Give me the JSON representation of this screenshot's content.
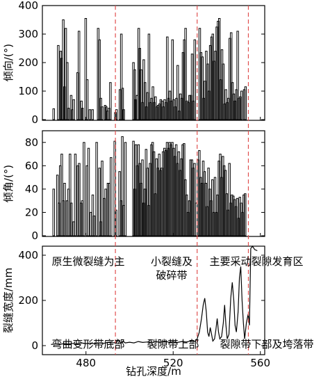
{
  "chart_data": [
    {
      "type": "bar",
      "ylabel": "倾向/(°)",
      "xlim": [
        460,
        562
      ],
      "ylim": [
        0,
        400
      ],
      "yticks": [
        0,
        100,
        200,
        300,
        400
      ],
      "bars": [
        [
          465.2,
          38
        ],
        [
          467.3,
          260
        ],
        [
          468.4,
          240
        ],
        [
          468.8,
          215
        ],
        [
          469.6,
          350
        ],
        [
          470.1,
          115
        ],
        [
          470.7,
          320
        ],
        [
          471.4,
          200
        ],
        [
          472.0,
          40
        ],
        [
          473.2,
          85
        ],
        [
          473.7,
          35
        ],
        [
          474.4,
          70
        ],
        [
          476.2,
          165
        ],
        [
          476.8,
          310
        ],
        [
          477.9,
          65
        ],
        [
          478.4,
          40
        ],
        [
          479.9,
          355
        ],
        [
          480.6,
          140
        ],
        [
          481.8,
          35
        ],
        [
          483.0,
          35
        ],
        [
          485.6,
          320
        ],
        [
          486.2,
          280
        ],
        [
          486.8,
          75
        ],
        [
          487.4,
          45
        ],
        [
          488.8,
          50
        ],
        [
          489.3,
          45
        ],
        [
          489.9,
          30
        ],
        [
          490.6,
          40
        ],
        [
          491.2,
          130
        ],
        [
          493.5,
          25
        ],
        [
          494.0,
          35
        ],
        [
          495.6,
          105
        ],
        [
          496.2,
          300
        ],
        [
          496.8,
          110
        ],
        [
          497.3,
          35
        ],
        [
          501.8,
          200
        ],
        [
          502.4,
          175
        ],
        [
          502.8,
          70
        ],
        [
          503.4,
          85
        ],
        [
          504.2,
          320
        ],
        [
          504.7,
          250
        ],
        [
          505.3,
          175
        ],
        [
          505.9,
          60
        ],
        [
          506.5,
          210
        ],
        [
          507.1,
          130
        ],
        [
          507.7,
          45
        ],
        [
          508.3,
          95
        ],
        [
          508.9,
          300
        ],
        [
          509.5,
          60
        ],
        [
          510.1,
          75
        ],
        [
          510.7,
          115
        ],
        [
          511.3,
          60
        ],
        [
          511.9,
          80
        ],
        [
          512.5,
          45
        ],
        [
          513.1,
          50
        ],
        [
          513.7,
          55
        ],
        [
          514.3,
          70
        ],
        [
          514.9,
          65
        ],
        [
          515.5,
          45
        ],
        [
          516.1,
          70
        ],
        [
          516.7,
          60
        ],
        [
          517.3,
          290
        ],
        [
          517.9,
          75
        ],
        [
          518.5,
          100
        ],
        [
          519.1,
          65
        ],
        [
          519.7,
          280
        ],
        [
          520.3,
          70
        ],
        [
          520.9,
          45
        ],
        [
          521.5,
          75
        ],
        [
          522.1,
          190
        ],
        [
          522.7,
          30
        ],
        [
          523.3,
          90
        ],
        [
          523.9,
          75
        ],
        [
          524.5,
          235
        ],
        [
          525.1,
          280
        ],
        [
          525.7,
          320
        ],
        [
          526.3,
          65
        ],
        [
          526.9,
          60
        ],
        [
          527.5,
          85
        ],
        [
          528.1,
          85
        ],
        [
          528.7,
          230
        ],
        [
          529.3,
          65
        ],
        [
          529.9,
          280
        ],
        [
          532.2,
          320
        ],
        [
          532.8,
          235
        ],
        [
          533.4,
          220
        ],
        [
          534.0,
          75
        ],
        [
          534.6,
          135
        ],
        [
          535.2,
          240
        ],
        [
          535.8,
          195
        ],
        [
          536.4,
          100
        ],
        [
          537.0,
          260
        ],
        [
          537.6,
          290
        ],
        [
          538.2,
          300
        ],
        [
          538.8,
          205
        ],
        [
          539.4,
          240
        ],
        [
          540.0,
          325
        ],
        [
          540.6,
          345
        ],
        [
          541.2,
          355
        ],
        [
          541.8,
          140
        ],
        [
          542.4,
          245
        ],
        [
          543.0,
          195
        ],
        [
          543.6,
          55
        ],
        [
          544.2,
          105
        ],
        [
          544.8,
          60
        ],
        [
          545.4,
          75
        ],
        [
          546.0,
          285
        ],
        [
          546.6,
          305
        ],
        [
          547.2,
          130
        ],
        [
          547.8,
          90
        ],
        [
          548.4,
          65
        ],
        [
          549.0,
          105
        ],
        [
          549.6,
          310
        ],
        [
          550.2,
          75
        ],
        [
          550.8,
          80
        ],
        [
          551.4,
          100
        ],
        [
          552.6,
          105
        ],
        [
          553.2,
          115
        ]
      ]
    },
    {
      "type": "bar",
      "ylabel": "倾角/(°)",
      "xlim": [
        460,
        562
      ],
      "ylim": [
        0,
        90
      ],
      "yticks": [
        0,
        20,
        40,
        60,
        80
      ],
      "bars": [
        [
          465.2,
          40
        ],
        [
          466.9,
          52
        ],
        [
          467.6,
          28
        ],
        [
          468.2,
          60
        ],
        [
          468.9,
          70
        ],
        [
          469.6,
          30
        ],
        [
          470.2,
          45
        ],
        [
          471.3,
          30
        ],
        [
          472.0,
          40
        ],
        [
          472.7,
          70
        ],
        [
          473.3,
          28
        ],
        [
          474.4,
          12
        ],
        [
          475.1,
          70
        ],
        [
          476.3,
          60
        ],
        [
          476.9,
          62
        ],
        [
          477.8,
          28
        ],
        [
          478.3,
          30
        ],
        [
          479.1,
          80
        ],
        [
          480.5,
          60
        ],
        [
          481.2,
          75
        ],
        [
          482.2,
          20
        ],
        [
          483.1,
          35
        ],
        [
          483.7,
          17
        ],
        [
          484.9,
          80
        ],
        [
          486.2,
          58
        ],
        [
          486.8,
          12
        ],
        [
          487.4,
          64
        ],
        [
          488.4,
          32
        ],
        [
          489.0,
          40
        ],
        [
          490.1,
          45
        ],
        [
          490.7,
          45
        ],
        [
          491.5,
          67
        ],
        [
          493.2,
          81
        ],
        [
          493.8,
          22
        ],
        [
          495.4,
          55
        ],
        [
          496.1,
          30
        ],
        [
          496.7,
          85
        ],
        [
          497.3,
          26
        ],
        [
          498.1,
          80
        ],
        [
          501.8,
          81
        ],
        [
          502.3,
          40
        ],
        [
          502.9,
          78
        ],
        [
          503.5,
          60
        ],
        [
          504.1,
          78
        ],
        [
          504.7,
          62
        ],
        [
          505.3,
          45
        ],
        [
          505.9,
          65
        ],
        [
          506.4,
          28
        ],
        [
          507.0,
          40
        ],
        [
          507.6,
          74
        ],
        [
          508.2,
          58
        ],
        [
          508.8,
          26
        ],
        [
          509.4,
          62
        ],
        [
          510.0,
          78
        ],
        [
          510.6,
          80
        ],
        [
          511.2,
          72
        ],
        [
          511.8,
          36
        ],
        [
          512.4,
          66
        ],
        [
          513.0,
          58
        ],
        [
          513.6,
          70
        ],
        [
          514.2,
          56
        ],
        [
          514.8,
          58
        ],
        [
          515.4,
          72
        ],
        [
          516.0,
          75
        ],
        [
          516.6,
          73
        ],
        [
          517.2,
          80
        ],
        [
          517.8,
          75
        ],
        [
          518.4,
          80
        ],
        [
          519.0,
          78
        ],
        [
          519.6,
          80
        ],
        [
          520.2,
          75
        ],
        [
          520.8,
          68
        ],
        [
          521.4,
          78
        ],
        [
          522.0,
          62
        ],
        [
          522.6,
          72
        ],
        [
          523.2,
          56
        ],
        [
          523.8,
          66
        ],
        [
          524.4,
          78
        ],
        [
          525.0,
          79
        ],
        [
          525.6,
          48
        ],
        [
          526.2,
          35
        ],
        [
          526.8,
          20
        ],
        [
          527.4,
          30
        ],
        [
          528.0,
          65
        ],
        [
          528.6,
          65
        ],
        [
          529.2,
          58
        ],
        [
          529.8,
          62
        ],
        [
          530.6,
          28
        ],
        [
          531.4,
          65
        ],
        [
          532.0,
          73
        ],
        [
          532.6,
          50
        ],
        [
          533.2,
          45
        ],
        [
          533.8,
          64
        ],
        [
          534.4,
          55
        ],
        [
          535.0,
          45
        ],
        [
          535.6,
          25
        ],
        [
          536.2,
          58
        ],
        [
          536.8,
          40
        ],
        [
          537.4,
          30
        ],
        [
          538.0,
          48
        ],
        [
          538.6,
          20
        ],
        [
          539.2,
          50
        ],
        [
          539.8,
          20
        ],
        [
          540.4,
          35
        ],
        [
          541.0,
          64
        ],
        [
          541.6,
          70
        ],
        [
          542.2,
          50
        ],
        [
          542.8,
          68
        ],
        [
          543.4,
          60
        ],
        [
          544.0,
          56
        ],
        [
          544.6,
          36
        ],
        [
          545.2,
          22
        ],
        [
          545.8,
          62
        ],
        [
          546.4,
          28
        ],
        [
          547.0,
          35
        ],
        [
          547.6,
          34
        ],
        [
          548.2,
          31
        ],
        [
          548.8,
          25
        ],
        [
          549.4,
          32
        ],
        [
          550.0,
          15
        ],
        [
          550.6,
          33
        ],
        [
          551.2,
          28
        ],
        [
          551.8,
          20
        ],
        [
          552.4,
          35
        ],
        [
          553.0,
          36
        ]
      ]
    },
    {
      "type": "line",
      "ylabel": "裂缝宽度/mm",
      "xlabel": "钻孔深度/m",
      "xlim": [
        460,
        562
      ],
      "ylim": [
        -40,
        440
      ],
      "yticks": [
        0,
        200,
        400
      ],
      "xticks": [
        480,
        520,
        560
      ],
      "points": [
        [
          464,
          5
        ],
        [
          466,
          8
        ],
        [
          468,
          6
        ],
        [
          470,
          9
        ],
        [
          472,
          7
        ],
        [
          474,
          10
        ],
        [
          476,
          8
        ],
        [
          478,
          12
        ],
        [
          480,
          9
        ],
        [
          482,
          11
        ],
        [
          484,
          8
        ],
        [
          486,
          12
        ],
        [
          488,
          10
        ],
        [
          490,
          14
        ],
        [
          492,
          11
        ],
        [
          494,
          15
        ],
        [
          495,
          25
        ],
        [
          496,
          10
        ],
        [
          497,
          20
        ],
        [
          498,
          12
        ],
        [
          500,
          15
        ],
        [
          502,
          12
        ],
        [
          504,
          18
        ],
        [
          506,
          14
        ],
        [
          508,
          16
        ],
        [
          510,
          12
        ],
        [
          512,
          18
        ],
        [
          514,
          14
        ],
        [
          516,
          20
        ],
        [
          518,
          15
        ],
        [
          520,
          17
        ],
        [
          522,
          14
        ],
        [
          524,
          18
        ],
        [
          526,
          16
        ],
        [
          528,
          20
        ],
        [
          530,
          17
        ],
        [
          531,
          30
        ],
        [
          532,
          60
        ],
        [
          533,
          120
        ],
        [
          533.8,
          180
        ],
        [
          534.5,
          210
        ],
        [
          535.2,
          150
        ],
        [
          535.8,
          60
        ],
        [
          536.4,
          40
        ],
        [
          537,
          80
        ],
        [
          537.6,
          50
        ],
        [
          538.2,
          20
        ],
        [
          539,
          30
        ],
        [
          539.6,
          70
        ],
        [
          540.2,
          120
        ],
        [
          540.8,
          60
        ],
        [
          541.4,
          30
        ],
        [
          542.2,
          40
        ],
        [
          543,
          100
        ],
        [
          543.6,
          180
        ],
        [
          544.2,
          90
        ],
        [
          544.8,
          30
        ],
        [
          545.6,
          50
        ],
        [
          546.4,
          210
        ],
        [
          547.1,
          280
        ],
        [
          547.8,
          200
        ],
        [
          548.4,
          90
        ],
        [
          549,
          60
        ],
        [
          549.8,
          150
        ],
        [
          550.4,
          300
        ],
        [
          551,
          350
        ],
        [
          551.6,
          200
        ],
        [
          552.2,
          100
        ],
        [
          552.8,
          30
        ],
        [
          553.6,
          100
        ],
        [
          554.4,
          140
        ],
        [
          555,
          90
        ],
        [
          555.6,
          430
        ],
        [
          556.4,
          440
        ],
        [
          557.4,
          425
        ],
        [
          558.6,
          420
        ]
      ]
    }
  ],
  "dividers": [
    493.5,
    531.0,
    554.5
  ],
  "zone_labels_top": [
    "原生微裂缝为主",
    "小裂缝及",
    "破碎带",
    "主要采动裂隙发育区"
  ],
  "zone_labels_bottom": [
    "弯曲变形带底部",
    "裂隙带上部",
    "裂隙带下部及垮落带"
  ],
  "colors": {
    "bars": "#000000",
    "line": "#000000",
    "divider": "#e0504f",
    "axes": "#000000"
  }
}
